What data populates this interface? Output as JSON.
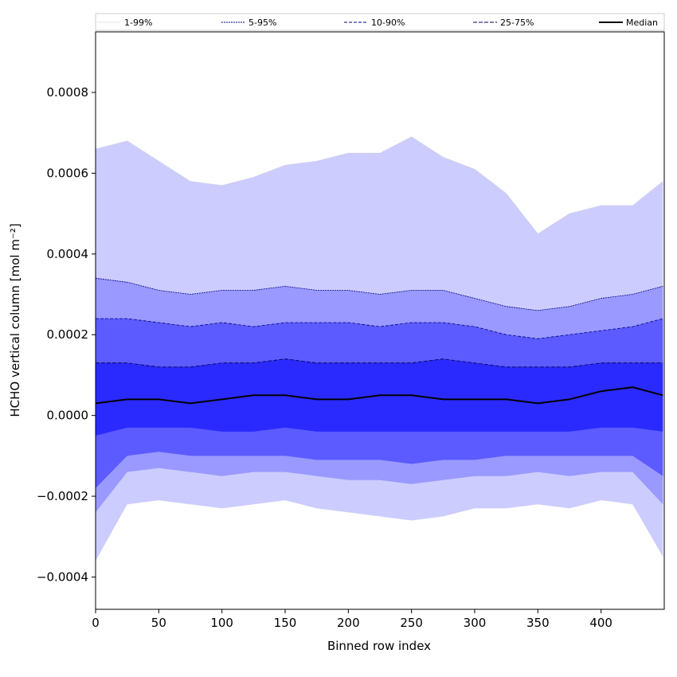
{
  "chart_data": {
    "type": "area",
    "xlabel": "Binned row index",
    "ylabel": "HCHO vertical column [mol m⁻²]",
    "xlim": [
      0,
      450
    ],
    "ylim": [
      -0.00048,
      0.00095
    ],
    "grid": false,
    "legend_position": "top",
    "x_ticks": [
      0,
      50,
      100,
      150,
      200,
      250,
      300,
      350,
      400
    ],
    "x_tick_labels": [
      "0",
      "50",
      "100",
      "150",
      "200",
      "250",
      "300",
      "350",
      "400"
    ],
    "y_ticks": [
      -0.0004,
      -0.0002,
      0.0,
      0.0002,
      0.0004,
      0.0006,
      0.0008
    ],
    "y_tick_labels": [
      "−0.0004",
      "−0.0002",
      "0.0000",
      "0.0002",
      "0.0004",
      "0.0006",
      "0.0008"
    ],
    "x": [
      0,
      25,
      50,
      75,
      100,
      125,
      150,
      175,
      200,
      225,
      250,
      275,
      300,
      325,
      350,
      375,
      400,
      425,
      449
    ],
    "series": [
      {
        "name": "1-99%",
        "lower": [
          -0.00036,
          -0.00022,
          -0.00021,
          -0.00022,
          -0.00023,
          -0.00022,
          -0.00021,
          -0.00023,
          -0.00024,
          -0.00025,
          -0.00026,
          -0.00025,
          -0.00023,
          -0.00023,
          -0.00022,
          -0.00023,
          -0.00021,
          -0.00022,
          -0.00035
        ],
        "upper": [
          0.00066,
          0.00068,
          0.00063,
          0.00058,
          0.00057,
          0.00059,
          0.00062,
          0.00063,
          0.00065,
          0.00065,
          0.00069,
          0.00064,
          0.00061,
          0.00055,
          0.00045,
          0.0005,
          0.00052,
          0.00052,
          0.00058
        ],
        "fill": "#ccccff",
        "line": "#ccccdd"
      },
      {
        "name": "5-95%",
        "lower": [
          -0.00024,
          -0.00014,
          -0.00013,
          -0.00014,
          -0.00015,
          -0.00014,
          -0.00014,
          -0.00015,
          -0.00016,
          -0.00016,
          -0.00017,
          -0.00016,
          -0.00015,
          -0.00015,
          -0.00014,
          -0.00015,
          -0.00014,
          -0.00014,
          -0.00022
        ],
        "upper": [
          0.00034,
          0.00033,
          0.00031,
          0.0003,
          0.00031,
          0.00031,
          0.00032,
          0.00031,
          0.00031,
          0.0003,
          0.00031,
          0.00031,
          0.00029,
          0.00027,
          0.00026,
          0.00027,
          0.00029,
          0.0003,
          0.00032
        ],
        "fill": "#9999ff",
        "line": "#000080"
      },
      {
        "name": "10-90%",
        "lower": [
          -0.00018,
          -0.0001,
          -9e-05,
          -0.0001,
          -0.0001,
          -0.0001,
          -0.0001,
          -0.00011,
          -0.00011,
          -0.00011,
          -0.00012,
          -0.00011,
          -0.00011,
          -0.0001,
          -0.0001,
          -0.0001,
          -0.0001,
          -0.0001,
          -0.00015
        ],
        "upper": [
          0.00024,
          0.00024,
          0.00023,
          0.00022,
          0.00023,
          0.00022,
          0.00023,
          0.00023,
          0.00023,
          0.00022,
          0.00023,
          0.00023,
          0.00022,
          0.0002,
          0.00019,
          0.0002,
          0.00021,
          0.00022,
          0.00024
        ],
        "fill": "#5b5bff",
        "line": "#000080"
      },
      {
        "name": "25-75%",
        "lower": [
          -5e-05,
          -3e-05,
          -3e-05,
          -3e-05,
          -4e-05,
          -4e-05,
          -3e-05,
          -4e-05,
          -4e-05,
          -4e-05,
          -4e-05,
          -4e-05,
          -4e-05,
          -4e-05,
          -4e-05,
          -4e-05,
          -3e-05,
          -3e-05,
          -4e-05
        ],
        "upper": [
          0.00013,
          0.00013,
          0.00012,
          0.00012,
          0.00013,
          0.00013,
          0.00014,
          0.00013,
          0.00013,
          0.00013,
          0.00013,
          0.00014,
          0.00013,
          0.00012,
          0.00012,
          0.00012,
          0.00013,
          0.00013,
          0.00013
        ],
        "fill": "#2a2aff",
        "line": "#000050"
      },
      {
        "name": "Median",
        "values": [
          3e-05,
          4e-05,
          4e-05,
          3e-05,
          4e-05,
          5e-05,
          5e-05,
          4e-05,
          4e-05,
          5e-05,
          5e-05,
          4e-05,
          4e-05,
          4e-05,
          3e-05,
          4e-05,
          6e-05,
          7e-05,
          5e-05
        ],
        "line": "#000000"
      }
    ]
  }
}
